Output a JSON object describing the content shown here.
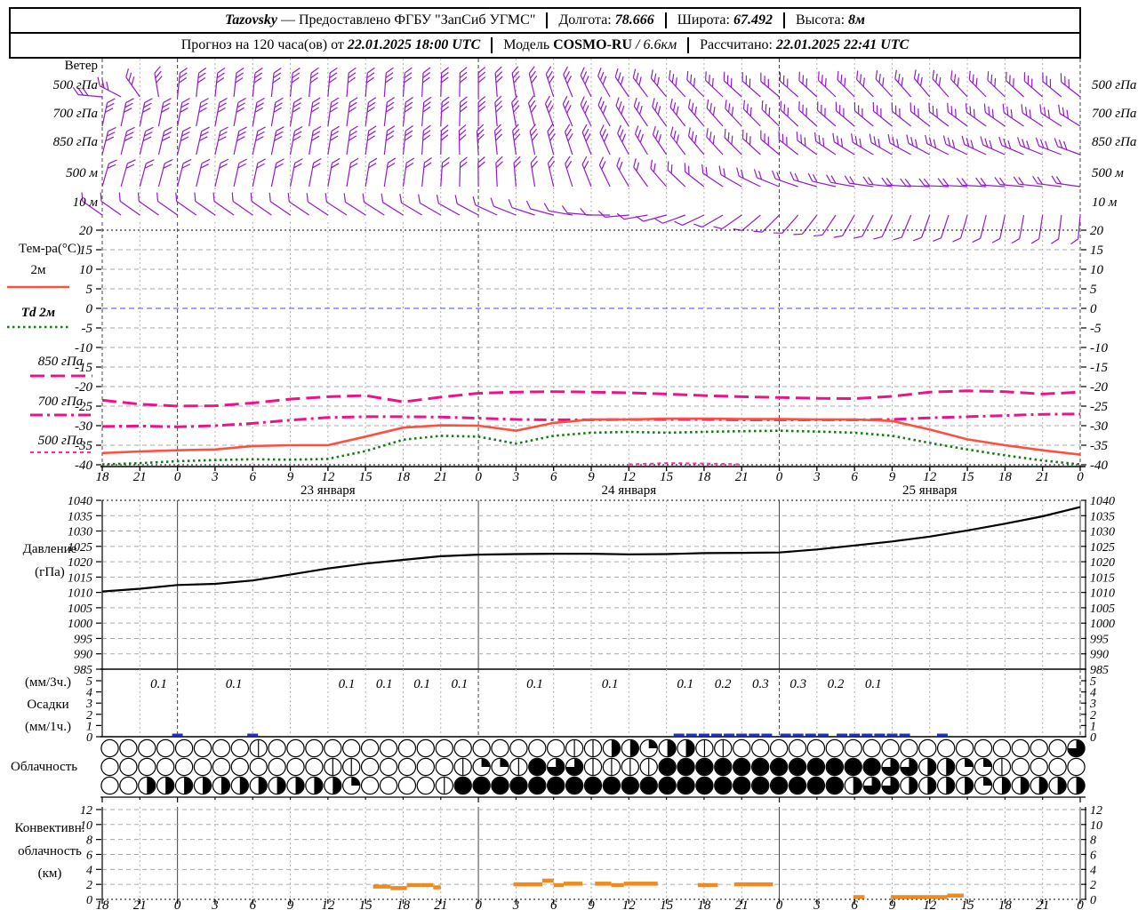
{
  "header": {
    "station": "Tazovsky",
    "provider": "— Предоставлено ФГБУ \"ЗапСиб УГМС\"",
    "lon_label": "Долгота:",
    "lon": "78.666",
    "lat_label": "Широта:",
    "lat": "67.492",
    "alt_label": "Высота:",
    "alt": "8м",
    "forecast_label": "Прогноз на 120 часа(ов) от",
    "forecast_time": "22.01.2025 18:00 UTC",
    "model_label": "Модель",
    "model_name": "COSMO-RU",
    "model_res": "/ 6.6км",
    "calc_label": "Рассчитано:",
    "calc_time": "22.01.2025 22:41 UTC"
  },
  "labels": {
    "wind_title": "Ветер",
    "wind_rows": [
      "500 гПа",
      "700 гПа",
      "850 гПа",
      "500 м",
      "10 м"
    ],
    "temp_title": "Тем-ра(°C)",
    "temp_legend": [
      "2м",
      "Td  2м",
      "850 гПа",
      "700 гПа",
      "500 гПа"
    ],
    "pressure_title": "Давление",
    "pressure_units": "(гПа)",
    "precip_l1": "(мм/3ч.)",
    "precip_l2": "Осадки",
    "precip_l3": "(мм/1ч.)",
    "cloud_title": "Облачность",
    "conv_l1": "Конвективн.",
    "conv_l2": "облачность",
    "conv_l3": "(км)"
  },
  "colors": {
    "barb": "#9418d6",
    "t2m": "#ff4f3f",
    "td": "#0f7d0f",
    "t850": "#ee1289",
    "t700": "#ee1289",
    "t500": "#ff2e9a",
    "pressure": "#000000",
    "precip": "#2233cc",
    "convective": "#ef8a1f",
    "grid": "#b0b0b0",
    "day_grid": "#444444",
    "zero_line": "#4444ff"
  },
  "chart_data": {
    "x_axis": {
      "hours_total": 78,
      "tick_step_h": 3,
      "hour_labels": [
        "18",
        "21",
        "0",
        "3",
        "6",
        "9",
        "12",
        "15",
        "18",
        "21",
        "0",
        "3",
        "6",
        "9",
        "12",
        "15",
        "18",
        "21",
        "0",
        "3",
        "6",
        "9",
        "12",
        "15",
        "18",
        "21",
        "0"
      ],
      "day_labels": [
        {
          "h": 18,
          "label": "23 января"
        },
        {
          "h": 42,
          "label": "24 января"
        },
        {
          "h": 66,
          "label": "25 января"
        }
      ],
      "day_boundaries_h": [
        6,
        30,
        54,
        78
      ]
    },
    "wind": {
      "type": "wind-barbs",
      "step_h": 1.5,
      "rows": [
        {
          "label": "500 гПа",
          "y": 95,
          "feathers": 3,
          "dir_ctrl": [
            [
              0,
              -85
            ],
            [
              2,
              -55
            ],
            [
              4,
              -15
            ],
            [
              6,
              6
            ],
            [
              12,
              6
            ],
            [
              24,
              4
            ],
            [
              30,
              0
            ],
            [
              36,
              -18
            ],
            [
              42,
              -34
            ],
            [
              48,
              -45
            ],
            [
              54,
              -50
            ],
            [
              60,
              -45
            ],
            [
              66,
              -40
            ],
            [
              72,
              -46
            ],
            [
              78,
              -52
            ]
          ]
        },
        {
          "label": "700 гПа",
          "y": 128,
          "feathers": 3,
          "dir_ctrl": [
            [
              0,
              12
            ],
            [
              12,
              10
            ],
            [
              24,
              6
            ],
            [
              30,
              0
            ],
            [
              36,
              -20
            ],
            [
              42,
              -32
            ],
            [
              48,
              -40
            ],
            [
              54,
              -46
            ],
            [
              60,
              -50
            ],
            [
              66,
              -52
            ],
            [
              72,
              -55
            ],
            [
              78,
              -58
            ]
          ]
        },
        {
          "label": "850 гПа",
          "y": 160,
          "feathers": 3,
          "dir_ctrl": [
            [
              0,
              14
            ],
            [
              12,
              12
            ],
            [
              24,
              6
            ],
            [
              33,
              -8
            ],
            [
              42,
              -28
            ],
            [
              48,
              -40
            ],
            [
              54,
              -50
            ],
            [
              60,
              -58
            ],
            [
              66,
              -62
            ],
            [
              72,
              -66
            ],
            [
              78,
              -70
            ]
          ]
        },
        {
          "label": "500 м",
          "y": 196,
          "feathers": 2,
          "dir_ctrl": [
            [
              0,
              16
            ],
            [
              12,
              12
            ],
            [
              24,
              8
            ],
            [
              33,
              -5
            ],
            [
              42,
              -30
            ],
            [
              48,
              -52
            ],
            [
              54,
              -68
            ],
            [
              60,
              -80
            ],
            [
              66,
              -88
            ],
            [
              72,
              -86
            ],
            [
              78,
              -82
            ]
          ]
        },
        {
          "label": "10 м",
          "y": 228,
          "feathers": 1,
          "dir_ctrl": [
            [
              0,
              -55
            ],
            [
              12,
              -55
            ],
            [
              24,
              -58
            ],
            [
              30,
              -62
            ],
            [
              36,
              -75
            ],
            [
              42,
              -95
            ],
            [
              48,
              -115
            ],
            [
              54,
              -135
            ],
            [
              60,
              -150
            ],
            [
              66,
              -160
            ],
            [
              72,
              -168
            ],
            [
              78,
              -175
            ]
          ]
        }
      ]
    },
    "temperature": {
      "type": "line",
      "ylim": [
        -40,
        20
      ],
      "yticks": [
        20,
        15,
        10,
        5,
        0,
        -5,
        -10,
        -15,
        -20,
        -25,
        -30,
        -35,
        -40
      ],
      "step_h": 3,
      "series": [
        {
          "name": "850 гПа",
          "style": "longdash",
          "values": [
            -23.5,
            -24.5,
            -25.0,
            -24.9,
            -24.2,
            -23.2,
            -22.6,
            -22.3,
            -23.9,
            -22.7,
            -21.7,
            -21.4,
            -21.3,
            -21.4,
            -21.6,
            -21.9,
            -22.3,
            -22.6,
            -22.8,
            -23.0,
            -23.1,
            -22.5,
            -21.4,
            -21.1,
            -21.3,
            -21.9,
            -21.4
          ]
        },
        {
          "name": "700 гПа",
          "style": "dashdot",
          "values": [
            -30.2,
            -30.1,
            -30.3,
            -30.0,
            -29.4,
            -28.6,
            -27.9,
            -27.7,
            -27.7,
            -27.8,
            -28.1,
            -28.4,
            -28.5,
            -28.5,
            -28.4,
            -28.4,
            -28.4,
            -28.5,
            -28.5,
            -28.5,
            -28.5,
            -28.4,
            -28.0,
            -27.7,
            -27.4,
            -27.1,
            -27.0
          ]
        },
        {
          "name": "500 гПа",
          "style": "shortdash",
          "values": [
            null,
            null,
            null,
            null,
            null,
            null,
            null,
            null,
            null,
            null,
            null,
            null,
            null,
            null,
            -39.9,
            -39.6,
            -39.7,
            -39.9,
            null,
            null,
            null,
            null,
            null,
            null,
            null,
            null,
            null
          ]
        },
        {
          "name": "Td 2м",
          "style": "dotted",
          "values": [
            -39.9,
            -39.6,
            -39.1,
            -38.8,
            -38.6,
            -38.7,
            -38.5,
            -36.5,
            -33.6,
            -32.6,
            -32.8,
            -34.6,
            -32.6,
            -31.8,
            -31.6,
            -31.8,
            -31.6,
            -31.4,
            -31.3,
            -31.5,
            -31.8,
            -32.6,
            -34.4,
            -36.1,
            -37.6,
            -38.9,
            -39.9
          ]
        },
        {
          "name": "2м",
          "style": "solid",
          "values": [
            -37.0,
            -36.6,
            -36.3,
            -36.1,
            -35.2,
            -35.0,
            -35.0,
            -32.8,
            -30.5,
            -29.9,
            -30.0,
            -31.3,
            -29.3,
            -28.4,
            -28.4,
            -28.2,
            -28.2,
            -28.3,
            -28.3,
            -28.4,
            -28.4,
            -28.8,
            -31.0,
            -33.5,
            -35.0,
            -36.3,
            -37.4
          ]
        }
      ]
    },
    "pressure": {
      "type": "line",
      "ylim": [
        985,
        1040
      ],
      "yticks": [
        1040,
        1035,
        1030,
        1025,
        1020,
        1015,
        1010,
        1005,
        1000,
        995,
        990,
        985
      ],
      "step_h": 3,
      "values": [
        1010.3,
        1011.2,
        1012.4,
        1012.8,
        1013.9,
        1015.8,
        1017.8,
        1019.4,
        1020.6,
        1021.8,
        1022.3,
        1022.5,
        1022.6,
        1022.6,
        1022.4,
        1022.5,
        1022.8,
        1022.9,
        1023.0,
        1024.0,
        1025.3,
        1026.6,
        1028.2,
        1030.2,
        1032.4,
        1034.8,
        1037.8
      ]
    },
    "precipitation": {
      "type": "bar",
      "ylim": [
        0,
        5
      ],
      "yticks": [
        5,
        4,
        3,
        2,
        1,
        0
      ],
      "labels_3h": [
        {
          "h": 4.5,
          "v": "0.1"
        },
        {
          "h": 10.5,
          "v": "0.1"
        },
        {
          "h": 19.5,
          "v": "0.1"
        },
        {
          "h": 22.5,
          "v": "0.1"
        },
        {
          "h": 25.5,
          "v": "0.1"
        },
        {
          "h": 28.5,
          "v": "0.1"
        },
        {
          "h": 34.5,
          "v": "0.1"
        },
        {
          "h": 40.5,
          "v": "0.1"
        },
        {
          "h": 46.5,
          "v": "0.1"
        },
        {
          "h": 49.5,
          "v": "0.2"
        },
        {
          "h": 52.5,
          "v": "0.3"
        },
        {
          "h": 55.5,
          "v": "0.3"
        },
        {
          "h": 58.5,
          "v": "0.2"
        },
        {
          "h": 61.5,
          "v": "0.1"
        }
      ],
      "hourly_bars_h": [
        6,
        12,
        46,
        47,
        48,
        49,
        50,
        51,
        52,
        53,
        54.5,
        55.5,
        56.5,
        57.5,
        59,
        60,
        61,
        62,
        63,
        64,
        67
      ]
    },
    "cloudiness": {
      "type": "okta-rows",
      "rows": [
        {
          "name": "high",
          "oktas": [
            0,
            0,
            0,
            0,
            0,
            0,
            0,
            0,
            1,
            0,
            0,
            0,
            0,
            0,
            0,
            0,
            0,
            0,
            0,
            0,
            0,
            0,
            0,
            0,
            0,
            1,
            1,
            4,
            4,
            2,
            4,
            4,
            1,
            1,
            0,
            0,
            0,
            0,
            0,
            0,
            0,
            0,
            0,
            0,
            0,
            0,
            0,
            0,
            0,
            0,
            0,
            0,
            6
          ]
        },
        {
          "name": "middle",
          "oktas": [
            0,
            0,
            0,
            0,
            0,
            0,
            0,
            0,
            0,
            0,
            0,
            0,
            1,
            1,
            0,
            0,
            0,
            0,
            0,
            1,
            2,
            2,
            1,
            8,
            6,
            6,
            1,
            1,
            1,
            1,
            8,
            8,
            8,
            8,
            8,
            8,
            8,
            8,
            8,
            8,
            8,
            8,
            6,
            6,
            4,
            4,
            2,
            2,
            1,
            0,
            0,
            0,
            0
          ]
        },
        {
          "name": "low",
          "oktas": [
            0,
            0,
            4,
            4,
            4,
            4,
            4,
            4,
            4,
            4,
            4,
            4,
            4,
            2,
            0,
            0,
            0,
            0,
            1,
            8,
            8,
            8,
            8,
            8,
            8,
            8,
            8,
            8,
            8,
            8,
            8,
            8,
            8,
            8,
            8,
            8,
            8,
            8,
            8,
            8,
            4,
            6,
            6,
            4,
            4,
            4,
            4,
            2,
            4,
            4,
            4,
            4,
            4
          ]
        }
      ]
    },
    "convective": {
      "type": "segments",
      "ylim": [
        0,
        12
      ],
      "yticks": [
        12,
        10,
        8,
        6,
        4,
        2,
        0
      ],
      "segments_km": [
        [
          21.6,
          23,
          1.7
        ],
        [
          23,
          24.3,
          1.5
        ],
        [
          24.3,
          25.4,
          1.9
        ],
        [
          25.4,
          26.4,
          1.9
        ],
        [
          26.4,
          27,
          1.6
        ],
        [
          32.8,
          35.1,
          2.0
        ],
        [
          35.1,
          36,
          2.5
        ],
        [
          36,
          36.8,
          1.9
        ],
        [
          36.8,
          38.3,
          2.1
        ],
        [
          39.3,
          40.6,
          2.1
        ],
        [
          40.6,
          41.6,
          1.9
        ],
        [
          41.6,
          44.3,
          2.1
        ],
        [
          47.5,
          49.1,
          1.9
        ],
        [
          50.4,
          53.5,
          2.0
        ],
        [
          59.9,
          60.8,
          0.3
        ],
        [
          62.9,
          67.4,
          0.3
        ],
        [
          67.4,
          68.7,
          0.5
        ]
      ]
    }
  }
}
